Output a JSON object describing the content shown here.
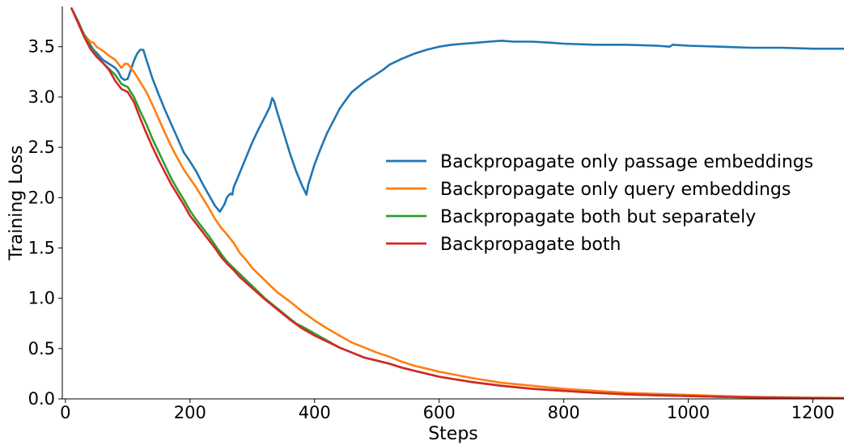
{
  "chart_data": {
    "type": "line",
    "title": "",
    "xlabel": "Steps",
    "ylabel": "Training Loss",
    "xlim": [
      -5,
      1250
    ],
    "ylim": [
      0,
      3.9
    ],
    "xticks": [
      0,
      200,
      400,
      600,
      800,
      1000,
      1200
    ],
    "yticks": [
      0.0,
      0.5,
      1.0,
      1.5,
      2.0,
      2.5,
      3.0,
      3.5
    ],
    "xtick_labels": [
      "0",
      "200",
      "400",
      "600",
      "800",
      "1000",
      "1200"
    ],
    "ytick_labels": [
      "0.0",
      "0.5",
      "1.0",
      "1.5",
      "2.0",
      "2.5",
      "3.0",
      "3.5"
    ],
    "grid": false,
    "legend_position": "center-right",
    "series": [
      {
        "name": "Backpropagate only passage embeddings",
        "color": "#1f77b4",
        "points": [
          [
            10,
            3.88
          ],
          [
            20,
            3.76
          ],
          [
            30,
            3.62
          ],
          [
            40,
            3.52
          ],
          [
            45,
            3.47
          ],
          [
            50,
            3.44
          ],
          [
            60,
            3.37
          ],
          [
            70,
            3.33
          ],
          [
            80,
            3.29
          ],
          [
            85,
            3.25
          ],
          [
            90,
            3.19
          ],
          [
            95,
            3.17
          ],
          [
            100,
            3.18
          ],
          [
            105,
            3.27
          ],
          [
            110,
            3.36
          ],
          [
            115,
            3.43
          ],
          [
            120,
            3.47
          ],
          [
            125,
            3.47
          ],
          [
            130,
            3.37
          ],
          [
            140,
            3.18
          ],
          [
            150,
            3.02
          ],
          [
            160,
            2.87
          ],
          [
            170,
            2.73
          ],
          [
            180,
            2.59
          ],
          [
            190,
            2.45
          ],
          [
            200,
            2.36
          ],
          [
            210,
            2.26
          ],
          [
            220,
            2.14
          ],
          [
            230,
            2.03
          ],
          [
            240,
            1.92
          ],
          [
            248,
            1.86
          ],
          [
            255,
            1.93
          ],
          [
            260,
            2.01
          ],
          [
            265,
            2.04
          ],
          [
            268,
            2.03
          ],
          [
            270,
            2.1
          ],
          [
            280,
            2.25
          ],
          [
            290,
            2.4
          ],
          [
            300,
            2.55
          ],
          [
            310,
            2.68
          ],
          [
            320,
            2.8
          ],
          [
            328,
            2.9
          ],
          [
            332,
            2.99
          ],
          [
            335,
            2.96
          ],
          [
            340,
            2.85
          ],
          [
            350,
            2.65
          ],
          [
            360,
            2.45
          ],
          [
            370,
            2.27
          ],
          [
            380,
            2.12
          ],
          [
            387,
            2.03
          ],
          [
            390,
            2.13
          ],
          [
            400,
            2.33
          ],
          [
            410,
            2.49
          ],
          [
            420,
            2.64
          ],
          [
            430,
            2.76
          ],
          [
            440,
            2.88
          ],
          [
            450,
            2.97
          ],
          [
            460,
            3.05
          ],
          [
            470,
            3.1
          ],
          [
            480,
            3.15
          ],
          [
            490,
            3.19
          ],
          [
            500,
            3.23
          ],
          [
            510,
            3.27
          ],
          [
            520,
            3.32
          ],
          [
            540,
            3.38
          ],
          [
            560,
            3.43
          ],
          [
            580,
            3.47
          ],
          [
            600,
            3.5
          ],
          [
            620,
            3.52
          ],
          [
            640,
            3.53
          ],
          [
            660,
            3.54
          ],
          [
            680,
            3.55
          ],
          [
            700,
            3.56
          ],
          [
            720,
            3.55
          ],
          [
            750,
            3.55
          ],
          [
            780,
            3.54
          ],
          [
            800,
            3.53
          ],
          [
            850,
            3.52
          ],
          [
            900,
            3.52
          ],
          [
            950,
            3.51
          ],
          [
            970,
            3.5
          ],
          [
            975,
            3.52
          ],
          [
            1000,
            3.51
          ],
          [
            1050,
            3.5
          ],
          [
            1100,
            3.49
          ],
          [
            1150,
            3.49
          ],
          [
            1200,
            3.48
          ],
          [
            1250,
            3.48
          ]
        ]
      },
      {
        "name": "Backpropagate only query embeddings",
        "color": "#ff7f0e",
        "points": [
          [
            10,
            3.88
          ],
          [
            20,
            3.75
          ],
          [
            30,
            3.62
          ],
          [
            40,
            3.55
          ],
          [
            45,
            3.54
          ],
          [
            50,
            3.5
          ],
          [
            60,
            3.46
          ],
          [
            70,
            3.41
          ],
          [
            80,
            3.37
          ],
          [
            90,
            3.29
          ],
          [
            95,
            3.33
          ],
          [
            100,
            3.33
          ],
          [
            110,
            3.25
          ],
          [
            120,
            3.15
          ],
          [
            130,
            3.05
          ],
          [
            140,
            2.92
          ],
          [
            150,
            2.78
          ],
          [
            160,
            2.64
          ],
          [
            170,
            2.51
          ],
          [
            180,
            2.39
          ],
          [
            190,
            2.28
          ],
          [
            200,
            2.19
          ],
          [
            210,
            2.1
          ],
          [
            220,
            2.0
          ],
          [
            230,
            1.9
          ],
          [
            240,
            1.79
          ],
          [
            250,
            1.7
          ],
          [
            260,
            1.63
          ],
          [
            270,
            1.55
          ],
          [
            280,
            1.45
          ],
          [
            290,
            1.38
          ],
          [
            300,
            1.3
          ],
          [
            320,
            1.18
          ],
          [
            340,
            1.06
          ],
          [
            360,
            0.97
          ],
          [
            380,
            0.87
          ],
          [
            400,
            0.78
          ],
          [
            420,
            0.7
          ],
          [
            440,
            0.63
          ],
          [
            460,
            0.56
          ],
          [
            480,
            0.51
          ],
          [
            500,
            0.46
          ],
          [
            520,
            0.42
          ],
          [
            540,
            0.37
          ],
          [
            560,
            0.33
          ],
          [
            580,
            0.3
          ],
          [
            600,
            0.27
          ],
          [
            650,
            0.21
          ],
          [
            700,
            0.16
          ],
          [
            750,
            0.13
          ],
          [
            800,
            0.1
          ],
          [
            850,
            0.08
          ],
          [
            900,
            0.06
          ],
          [
            950,
            0.05
          ],
          [
            1000,
            0.04
          ],
          [
            1050,
            0.03
          ],
          [
            1100,
            0.02
          ],
          [
            1150,
            0.015
          ],
          [
            1200,
            0.012
          ],
          [
            1250,
            0.01
          ]
        ]
      },
      {
        "name": "Backpropagate both but separately",
        "color": "#2ca02c",
        "points": [
          [
            10,
            3.88
          ],
          [
            20,
            3.75
          ],
          [
            30,
            3.62
          ],
          [
            40,
            3.5
          ],
          [
            50,
            3.41
          ],
          [
            60,
            3.34
          ],
          [
            70,
            3.28
          ],
          [
            80,
            3.22
          ],
          [
            90,
            3.13
          ],
          [
            100,
            3.1
          ],
          [
            110,
            3.0
          ],
          [
            120,
            2.86
          ],
          [
            130,
            2.73
          ],
          [
            140,
            2.58
          ],
          [
            150,
            2.45
          ],
          [
            160,
            2.32
          ],
          [
            170,
            2.19
          ],
          [
            180,
            2.08
          ],
          [
            190,
            1.98
          ],
          [
            200,
            1.87
          ],
          [
            210,
            1.78
          ],
          [
            220,
            1.7
          ],
          [
            230,
            1.62
          ],
          [
            240,
            1.53
          ],
          [
            250,
            1.44
          ],
          [
            260,
            1.36
          ],
          [
            270,
            1.3
          ],
          [
            280,
            1.24
          ],
          [
            300,
            1.12
          ],
          [
            320,
            1.0
          ],
          [
            340,
            0.9
          ],
          [
            360,
            0.8
          ],
          [
            370,
            0.75
          ],
          [
            380,
            0.72
          ],
          [
            400,
            0.65
          ],
          [
            420,
            0.58
          ],
          [
            440,
            0.51
          ],
          [
            460,
            0.46
          ],
          [
            480,
            0.41
          ],
          [
            500,
            0.38
          ],
          [
            520,
            0.35
          ],
          [
            540,
            0.31
          ],
          [
            560,
            0.28
          ],
          [
            580,
            0.25
          ],
          [
            600,
            0.22
          ],
          [
            650,
            0.17
          ],
          [
            700,
            0.13
          ],
          [
            750,
            0.1
          ],
          [
            800,
            0.08
          ],
          [
            850,
            0.06
          ],
          [
            900,
            0.045
          ],
          [
            950,
            0.035
          ],
          [
            1000,
            0.028
          ],
          [
            1050,
            0.02
          ],
          [
            1100,
            0.015
          ],
          [
            1150,
            0.011
          ],
          [
            1200,
            0.008
          ],
          [
            1250,
            0.006
          ]
        ]
      },
      {
        "name": "Backpropagate both",
        "color": "#d62728",
        "points": [
          [
            10,
            3.88
          ],
          [
            20,
            3.74
          ],
          [
            30,
            3.6
          ],
          [
            40,
            3.48
          ],
          [
            50,
            3.4
          ],
          [
            60,
            3.34
          ],
          [
            70,
            3.27
          ],
          [
            80,
            3.16
          ],
          [
            90,
            3.08
          ],
          [
            100,
            3.05
          ],
          [
            110,
            2.95
          ],
          [
            120,
            2.79
          ],
          [
            130,
            2.64
          ],
          [
            140,
            2.5
          ],
          [
            150,
            2.37
          ],
          [
            160,
            2.25
          ],
          [
            170,
            2.13
          ],
          [
            180,
            2.03
          ],
          [
            190,
            1.93
          ],
          [
            200,
            1.82
          ],
          [
            210,
            1.74
          ],
          [
            220,
            1.66
          ],
          [
            230,
            1.58
          ],
          [
            240,
            1.5
          ],
          [
            250,
            1.41
          ],
          [
            260,
            1.34
          ],
          [
            270,
            1.28
          ],
          [
            280,
            1.21
          ],
          [
            300,
            1.1
          ],
          [
            320,
            0.99
          ],
          [
            340,
            0.89
          ],
          [
            360,
            0.79
          ],
          [
            380,
            0.7
          ],
          [
            400,
            0.63
          ],
          [
            420,
            0.57
          ],
          [
            440,
            0.51
          ],
          [
            460,
            0.46
          ],
          [
            480,
            0.41
          ],
          [
            500,
            0.38
          ],
          [
            520,
            0.35
          ],
          [
            540,
            0.31
          ],
          [
            560,
            0.28
          ],
          [
            580,
            0.25
          ],
          [
            600,
            0.22
          ],
          [
            650,
            0.17
          ],
          [
            700,
            0.13
          ],
          [
            750,
            0.1
          ],
          [
            800,
            0.08
          ],
          [
            850,
            0.06
          ],
          [
            900,
            0.045
          ],
          [
            950,
            0.035
          ],
          [
            1000,
            0.028
          ],
          [
            1050,
            0.02
          ],
          [
            1100,
            0.015
          ],
          [
            1150,
            0.011
          ],
          [
            1200,
            0.008
          ],
          [
            1250,
            0.006
          ]
        ]
      }
    ]
  }
}
